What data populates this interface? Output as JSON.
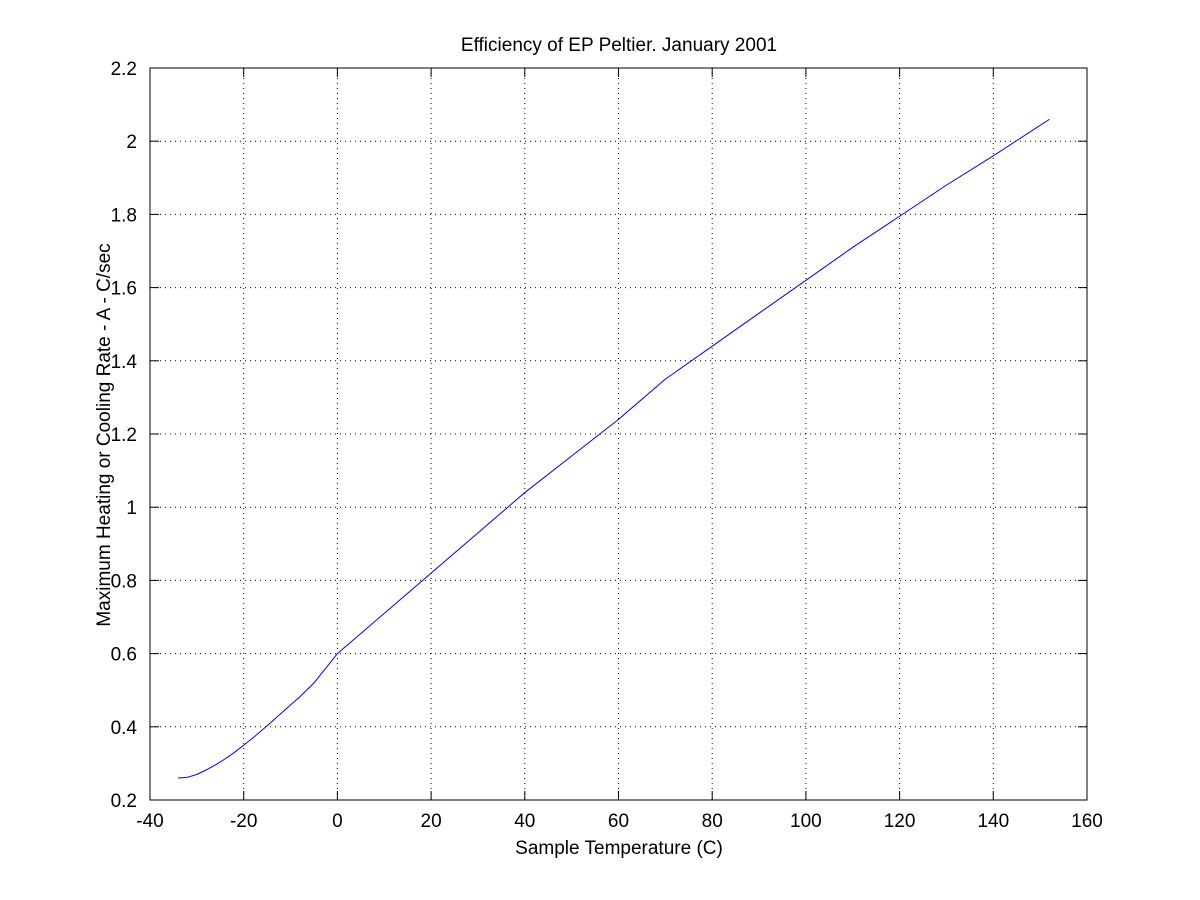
{
  "chart_data": {
    "type": "line",
    "title": "Efficiency of EP Peltier. January 2001",
    "xlabel": "Sample Temperature (C)",
    "ylabel": "Maximum Heating or Cooling Rate - A - C/sec",
    "xlim": [
      -40,
      160
    ],
    "ylim": [
      0.2,
      2.2
    ],
    "xticks": [
      -40,
      -20,
      0,
      20,
      40,
      60,
      80,
      100,
      120,
      140,
      160
    ],
    "yticks": [
      0.2,
      0.4,
      0.6,
      0.8,
      1,
      1.2,
      1.4,
      1.6,
      1.8,
      2,
      2.2
    ],
    "xtick_labels": [
      "-40",
      "-20",
      "0",
      "20",
      "40",
      "60",
      "80",
      "100",
      "120",
      "140",
      "160"
    ],
    "ytick_labels": [
      "0.2",
      "0.4",
      "0.6",
      "0.8",
      "1",
      "1.2",
      "1.4",
      "1.6",
      "1.8",
      "2",
      "2.2"
    ],
    "grid": true,
    "box": true,
    "series": [
      {
        "color": "#0000ff",
        "x": [
          -34,
          -32,
          -30,
          -28,
          -26,
          -24,
          -22,
          -20,
          -18,
          -16,
          -14,
          -12,
          -10,
          -8,
          -5,
          0,
          5,
          10,
          15,
          20,
          25,
          30,
          40,
          50,
          60,
          70,
          80,
          90,
          100,
          110,
          120,
          130,
          140,
          152
        ],
        "y": [
          0.26,
          0.262,
          0.27,
          0.282,
          0.296,
          0.312,
          0.33,
          0.35,
          0.37,
          0.392,
          0.414,
          0.437,
          0.46,
          0.482,
          0.52,
          0.6,
          0.655,
          0.71,
          0.765,
          0.82,
          0.875,
          0.93,
          1.04,
          1.14,
          1.24,
          1.35,
          1.44,
          1.53,
          1.62,
          1.71,
          1.795,
          1.88,
          1.96,
          2.06
        ]
      }
    ]
  }
}
